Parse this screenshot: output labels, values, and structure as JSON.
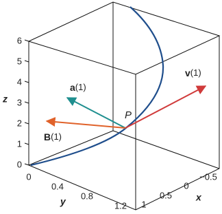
{
  "axes": {
    "z": {
      "label": "z",
      "ticks": [
        "0",
        "1",
        "2",
        "3",
        "4",
        "5",
        "6"
      ]
    },
    "y": {
      "label": "y",
      "ticks": [
        "0",
        "0.4",
        "0.8",
        "1.2"
      ]
    },
    "x": {
      "label": "x",
      "ticks": [
        "1",
        "0.5",
        "0",
        "−0.5"
      ]
    }
  },
  "point_label": "P",
  "vectors": [
    {
      "name": "a",
      "arg": "(1)"
    },
    {
      "name": "v",
      "arg": "(1)"
    },
    {
      "name": "B",
      "arg": "(1)"
    }
  ]
}
